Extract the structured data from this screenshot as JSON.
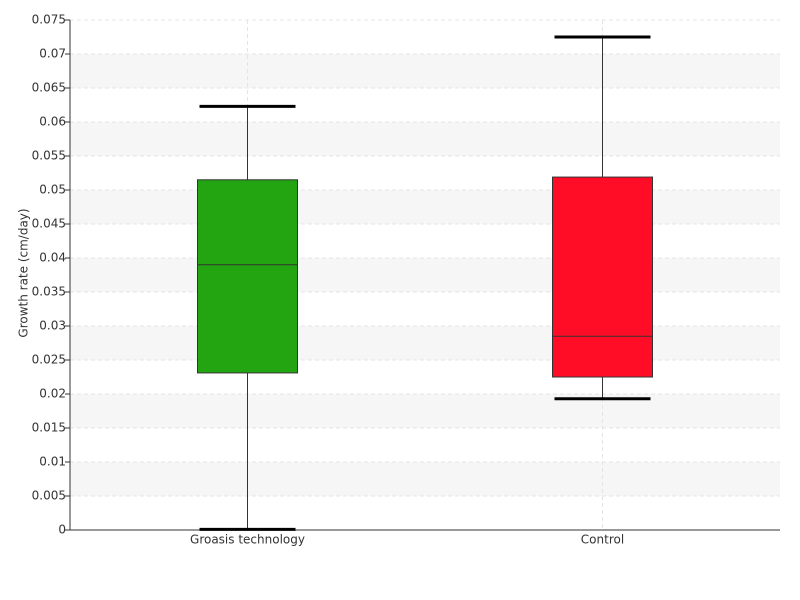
{
  "chart_data": {
    "type": "box",
    "y_label": "Growth rate (cm/day)",
    "categories": [
      "Groasis technology",
      "Control"
    ],
    "boxes": [
      {
        "color": "#22a511",
        "whisker_low": 0.0001,
        "q1": 0.0231,
        "median": 0.039,
        "q3": 0.0515,
        "whisker_high": 0.0623
      },
      {
        "color": "#ff0d26",
        "whisker_low": 0.0193,
        "q1": 0.0225,
        "median": 0.0285,
        "q3": 0.0519,
        "whisker_high": 0.0725
      }
    ],
    "ylim": [
      0,
      0.075
    ],
    "yticks": [
      0,
      0.005,
      0.01,
      0.015,
      0.02,
      0.025,
      0.03,
      0.035,
      0.04,
      0.045,
      0.05,
      0.055,
      0.06,
      0.065,
      0.07,
      0.075
    ],
    "grid": true
  }
}
